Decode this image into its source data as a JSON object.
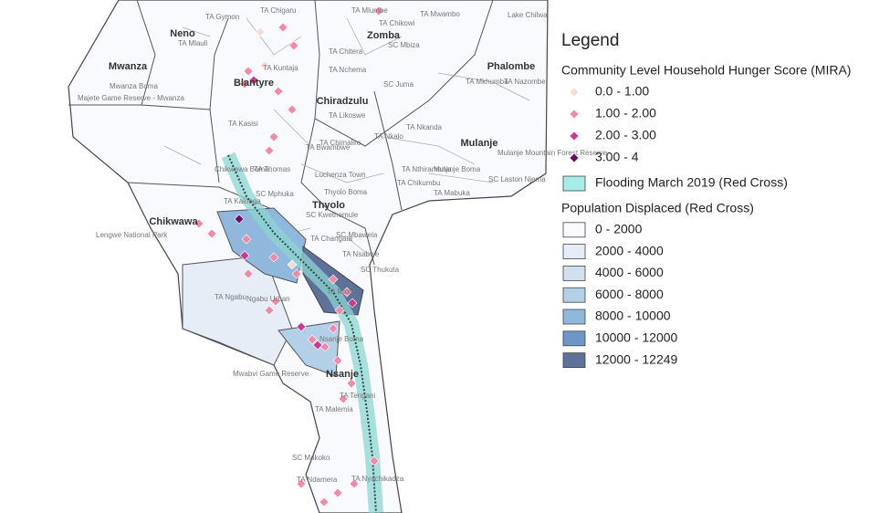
{
  "legend": {
    "title": "Legend",
    "sections": [
      {
        "title": "Community Level Household Hunger Score (MIRA)",
        "shape": "diamond",
        "items": [
          {
            "label": "0.0 - 1.00",
            "color": "#f6dcd4"
          },
          {
            "label": "1.00 - 2.00",
            "color": "#f08aa8"
          },
          {
            "label": "2.00 - 3.00",
            "color": "#cc3a8e"
          },
          {
            "label": "3.00 - 4",
            "color": "#6a0a6a"
          }
        ]
      },
      {
        "title": null,
        "shape": "rect",
        "items": [
          {
            "label": "Flooding March 2019 (Red Cross)",
            "color": "#a6ece8"
          }
        ]
      },
      {
        "title": "Population Displaced (Red Cross)",
        "shape": "rect",
        "items": [
          {
            "label": "0 - 2000",
            "color": "#f8fafd"
          },
          {
            "label": "2000 - 4000",
            "color": "#e6edf6"
          },
          {
            "label": "4000 - 6000",
            "color": "#d0e0ee"
          },
          {
            "label": "6000 - 8000",
            "color": "#b3d0e8"
          },
          {
            "label": "8000 - 10000",
            "color": "#8fb8dc"
          },
          {
            "label": "10000 - 12000",
            "color": "#6b98c8"
          },
          {
            "label": "12000 - 12249",
            "color": "#5d7199"
          }
        ]
      }
    ]
  },
  "districts": [
    "Neno",
    "Zomba",
    "Mwanza",
    "Phalombe",
    "Blantyre",
    "Chiradzulu",
    "Mulanje",
    "Chikwawa",
    "Thyolo",
    "Nsanje"
  ],
  "places": [
    "TA Chigaru",
    "TA Mlumbe",
    "TA Chikowi",
    "TA Mwambo",
    "Lake Chilwa",
    "TA Gymon",
    "TA Mlauli",
    "SC Mbiza",
    "TA Kuntaja",
    "TA Chitera",
    "TA Nchema",
    "SC Juma",
    "TA Mkhumba",
    "TA Nazombe",
    "Mwanza Boma",
    "Majete Game Reserve - Mwanza",
    "TA Likoswe",
    "TA Nkanda",
    "TA Nkalo",
    "Mulanje Mountain Forest Reserve",
    "TA Kasisi",
    "TA Chimaliro",
    "TA Nthiramanja",
    "Mulanje Boma",
    "SC Laston Njema",
    "Chikwawa Boma",
    "TA Thomas",
    "Luchenza Town",
    "TA Chikumbu",
    "TA Mabuka",
    "SC Mphuka",
    "Thyolo Boma",
    "TA Kalonga",
    "SC Kwethemule",
    "Lengwe National Park",
    "TA Changata",
    "SC Mbawela",
    "SC Thukuta",
    "TA Nsabwe",
    "TA Ngabu",
    "Ngabu Urban",
    "TA Mlolo",
    "Nsanje Boma",
    "Mwabvi Game Reserve",
    "TA Tengani",
    "TA Malemia",
    "SC Makoko",
    "TA Ndamera",
    "TA Nyachikadza",
    "TA Bwambwe"
  ]
}
